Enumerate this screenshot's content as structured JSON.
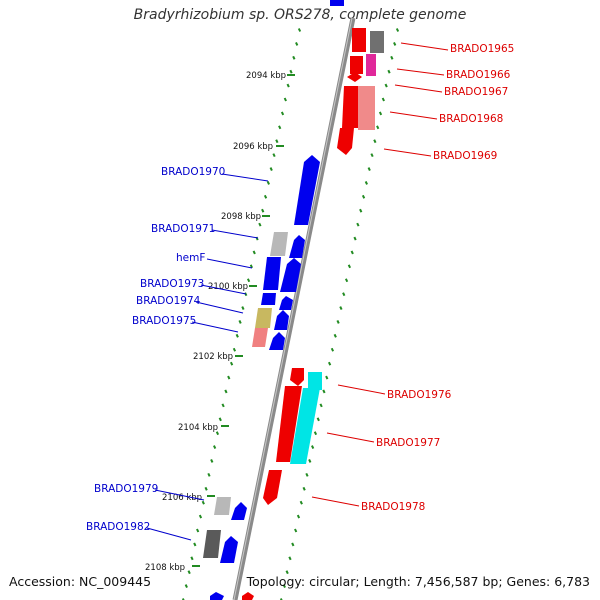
{
  "title": "Bradyrhizobium sp. ORS278, complete genome",
  "accession": "Accession: NC_009445",
  "summary": "Topology: circular; Length: 7,456,587 bp; Genes: 6,783",
  "colors": {
    "forward_label": "#0000cc",
    "reverse_label": "#dd0000",
    "tick": "#228b22",
    "backbone": "#808080"
  },
  "scale_labels": [
    "2094 kbp",
    "2096 kbp",
    "2098 kbp",
    "2100 kbp",
    "2102 kbp",
    "2104 kbp",
    "2106 kbp",
    "2108 kbp"
  ],
  "forward_genes": [
    "BRADO1970",
    "BRADO1971",
    "hemF",
    "BRADO1973",
    "BRADO1974",
    "BRADO1975",
    "BRADO1979",
    "BRADO1982"
  ],
  "reverse_genes": [
    "BRADO1965",
    "BRADO1966",
    "BRADO1967",
    "BRADO1968",
    "BRADO1969",
    "BRADO1976",
    "BRADO1977",
    "BRADO1978"
  ]
}
